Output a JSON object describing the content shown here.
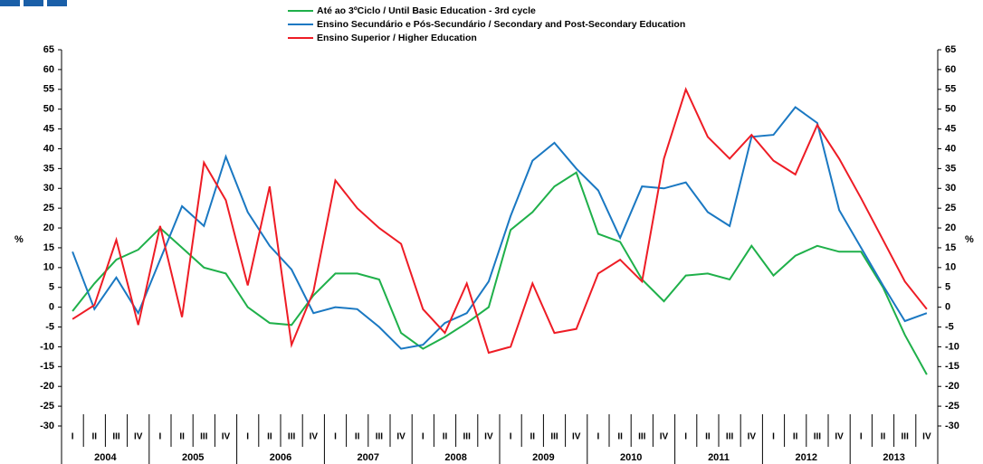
{
  "chart_data": {
    "type": "line",
    "categories": [
      "I",
      "II",
      "III",
      "IV",
      "I",
      "II",
      "III",
      "IV",
      "I",
      "II",
      "III",
      "IV",
      "I",
      "II",
      "III",
      "IV",
      "I",
      "II",
      "III",
      "IV",
      "I",
      "II",
      "III",
      "IV",
      "I",
      "II",
      "III",
      "IV",
      "I",
      "II",
      "III",
      "IV",
      "I",
      "II",
      "III",
      "IV",
      "I",
      "II",
      "III",
      "IV"
    ],
    "years": [
      "2004",
      "2005",
      "2006",
      "2007",
      "2008",
      "2009",
      "2010",
      "2011",
      "2012",
      "2013"
    ],
    "ylabel": "%",
    "y2label": "%",
    "ylim": [
      -30,
      65
    ],
    "yticks": [
      -30,
      -25,
      -20,
      -15,
      -10,
      -5,
      0,
      5,
      10,
      15,
      20,
      25,
      30,
      35,
      40,
      45,
      50,
      55,
      60,
      65
    ],
    "y2lim": [
      -30,
      65
    ],
    "y2ticks": [
      -30,
      -25,
      -20,
      -15,
      -10,
      -5,
      0,
      5,
      10,
      15,
      20,
      25,
      30,
      35,
      40,
      45,
      50,
      55,
      60,
      65
    ],
    "series": [
      {
        "name": "Até ao 3ºCiclo / Until Basic Education - 3rd cycle",
        "color": "#1fb04a",
        "values": [
          -1,
          6,
          12,
          14.5,
          20,
          15,
          10,
          8.5,
          0,
          -4,
          -4.5,
          3,
          8.5,
          8.5,
          7,
          -6.5,
          -10.5,
          -7.5,
          -4,
          0,
          19.5,
          24,
          30.5,
          34,
          18.5,
          16.5,
          7,
          1.5,
          8,
          8.5,
          7,
          15.5,
          8,
          13,
          15.5,
          14,
          14,
          5,
          -7,
          -17
        ]
      },
      {
        "name": "Ensino Secundário e Pós-Secundário / Secondary and Post-Secondary Education",
        "color": "#1a78c2",
        "values": [
          14,
          -0.5,
          7.5,
          -1.5,
          12,
          25.5,
          20.5,
          38,
          24,
          15.5,
          9.5,
          -1.5,
          0,
          -0.5,
          -5,
          -10.5,
          -9.5,
          -4,
          -1.5,
          6.5,
          23,
          37,
          41.5,
          35,
          29.5,
          17.5,
          30.5,
          30,
          31.5,
          24,
          20.5,
          43,
          43.5,
          50.5,
          46.5,
          24.5,
          15,
          5.5,
          -3.5,
          -1.5
        ]
      },
      {
        "name": "Ensino Superior / Higher Education",
        "color": "#ee1c25",
        "values": [
          -3,
          0.5,
          17,
          -4.5,
          20.5,
          -2.5,
          36.5,
          27,
          5.5,
          30.5,
          -9.5,
          4,
          32,
          25,
          20,
          16,
          -0.5,
          -6.5,
          6,
          -11.5,
          -10,
          6,
          -6.5,
          -5.5,
          8.5,
          12,
          6.5,
          37.5,
          55,
          43,
          37.5,
          43.5,
          37,
          33.5,
          46,
          37.5,
          27.5,
          17,
          6.5,
          -0.5
        ]
      }
    ]
  }
}
